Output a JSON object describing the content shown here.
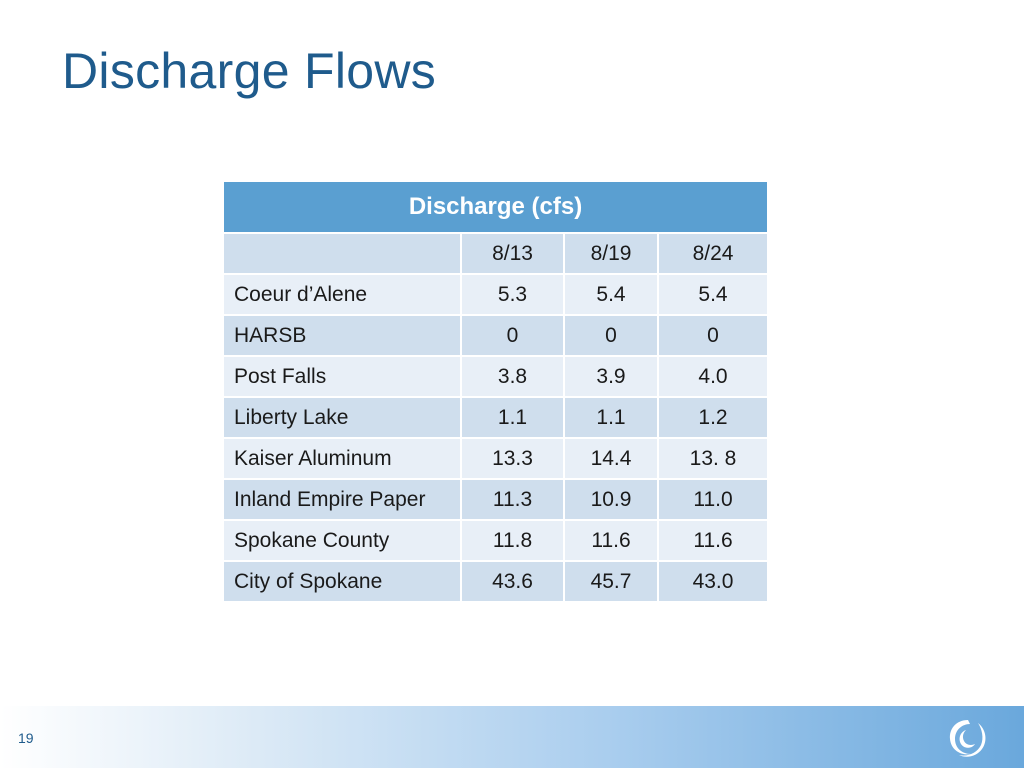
{
  "slide": {
    "title": "Discharge Flows",
    "page_number": "19"
  },
  "table": {
    "header": "Discharge (cfs)",
    "dates": [
      "8/13",
      "8/19",
      "8/24"
    ],
    "rows": [
      {
        "name": "Coeur d’Alene",
        "values": [
          "5.3",
          "5.4",
          "5.4"
        ]
      },
      {
        "name": "HARSB",
        "values": [
          "0",
          "0",
          "0"
        ]
      },
      {
        "name": "Post Falls",
        "values": [
          "3.8",
          "3.9",
          "4.0"
        ]
      },
      {
        "name": "Liberty Lake",
        "values": [
          "1.1",
          "1.1",
          "1.2"
        ]
      },
      {
        "name": "Kaiser Aluminum",
        "values": [
          "13.3",
          "14.4",
          "13. 8"
        ]
      },
      {
        "name": "Inland Empire Paper",
        "values": [
          "11.3",
          "10.9",
          "11.0"
        ]
      },
      {
        "name": "Spokane County",
        "values": [
          "11.8",
          "11.6",
          "11.6"
        ]
      },
      {
        "name": "City of Spokane",
        "values": [
          "43.6",
          "45.7",
          "43.0"
        ]
      }
    ]
  },
  "colors": {
    "title": "#1f5b8c",
    "header_bg": "#5a9fd1",
    "row_dark": "#cfdeed",
    "row_light": "#e8eff7"
  },
  "icons": {
    "logo": "swirl-logo-icon"
  }
}
